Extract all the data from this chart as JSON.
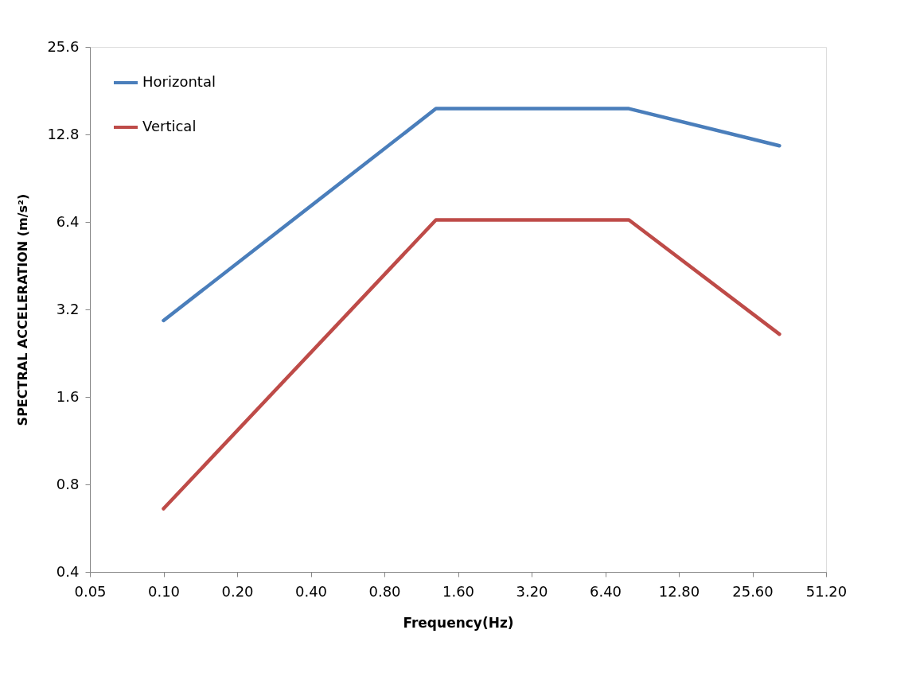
{
  "chart_data": {
    "type": "line",
    "xlabel": "Frequency(Hz)",
    "ylabel": "SPECTRAL ACCELERATION (m/s²)",
    "log": "xy",
    "grid": false,
    "legend": "top left",
    "marker": "none",
    "line_style": "solid",
    "x": [
      0.1,
      1.3,
      8,
      33
    ],
    "xlim": [
      0.05,
      51.2
    ],
    "xticks": [
      {
        "value": 0.05,
        "label": "0.05"
      },
      {
        "value": 0.1,
        "label": "0.10"
      },
      {
        "value": 0.2,
        "label": "0.20"
      },
      {
        "value": 0.4,
        "label": "0.40"
      },
      {
        "value": 0.8,
        "label": "0.80"
      },
      {
        "value": 1.6,
        "label": "1.60"
      },
      {
        "value": 3.2,
        "label": "3.20"
      },
      {
        "value": 6.4,
        "label": "6.40"
      },
      {
        "value": 12.8,
        "label": "12.80"
      },
      {
        "value": 25.6,
        "label": "25.60"
      },
      {
        "value": 51.2,
        "label": "51.20"
      }
    ],
    "ylim": [
      0.4,
      25.6
    ],
    "yticks": [
      0.4,
      0.8,
      1.6,
      3.2,
      6.4,
      12.8,
      25.6
    ],
    "series": [
      {
        "name": "Horizontal",
        "color": "#4a7ebb",
        "values": [
          2.93,
          15.7,
          15.7,
          11.7
        ]
      },
      {
        "name": "Vertical",
        "color": "#be4b48",
        "values": [
          0.66,
          6.5,
          6.5,
          2.63
        ]
      }
    ]
  }
}
